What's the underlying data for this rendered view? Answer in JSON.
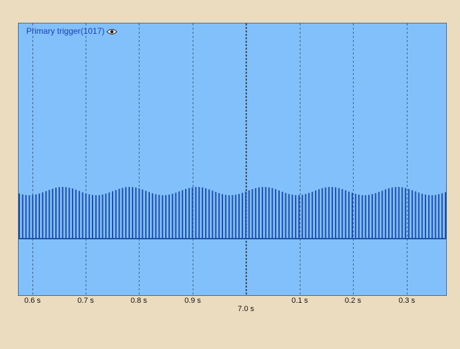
{
  "trace": {
    "label": "Primary trigger(1017)",
    "icon": "eye-icon",
    "color": "#1f4fa8"
  },
  "colors": {
    "background": "#ebdcc0",
    "plot_background": "#82c0fb",
    "label_text": "#1a3fb0"
  },
  "axis": {
    "tick_labels": [
      "0.6 s",
      "0.7 s",
      "0.8 s",
      "0.9 s",
      "0.1 s",
      "0.2 s",
      "0.3 s"
    ],
    "center_label": "7.0 s"
  }
}
